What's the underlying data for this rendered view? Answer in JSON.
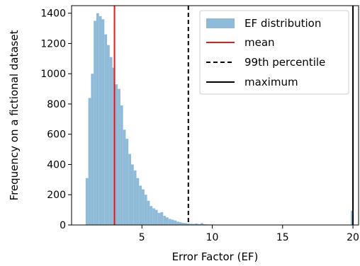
{
  "chart_data": {
    "type": "bar",
    "xlabel": "Error Factor (EF)",
    "ylabel": "Frequency on a fictional dataset",
    "xlim": [
      0,
      20.4
    ],
    "ylim": [
      0,
      1450
    ],
    "x_ticks": [
      5,
      10,
      15,
      20
    ],
    "x_tick_labels": [
      "5",
      "10",
      "15",
      "20"
    ],
    "y_ticks": [
      0,
      200,
      400,
      600,
      800,
      1000,
      1200,
      1400
    ],
    "y_tick_labels": [
      "0",
      "200",
      "400",
      "600",
      "800",
      "1000",
      "1200",
      "1400"
    ],
    "grid": false,
    "legend_position": "top-right",
    "bin_width": 0.19,
    "histogram": {
      "name": "EF distribution",
      "color": "#8fbbd9",
      "bins": [
        {
          "x": 1.0,
          "count": 310
        },
        {
          "x": 1.19,
          "count": 840
        },
        {
          "x": 1.38,
          "count": 1000
        },
        {
          "x": 1.57,
          "count": 1350
        },
        {
          "x": 1.76,
          "count": 1400
        },
        {
          "x": 1.95,
          "count": 1380
        },
        {
          "x": 2.14,
          "count": 1360
        },
        {
          "x": 2.33,
          "count": 1260
        },
        {
          "x": 2.52,
          "count": 1190
        },
        {
          "x": 2.71,
          "count": 1110
        },
        {
          "x": 2.9,
          "count": 1040
        },
        {
          "x": 3.09,
          "count": 930
        },
        {
          "x": 3.28,
          "count": 900
        },
        {
          "x": 3.47,
          "count": 790
        },
        {
          "x": 3.66,
          "count": 630
        },
        {
          "x": 3.85,
          "count": 570
        },
        {
          "x": 4.04,
          "count": 470
        },
        {
          "x": 4.23,
          "count": 400
        },
        {
          "x": 4.42,
          "count": 360
        },
        {
          "x": 4.61,
          "count": 310
        },
        {
          "x": 4.8,
          "count": 260
        },
        {
          "x": 4.99,
          "count": 235
        },
        {
          "x": 5.18,
          "count": 200
        },
        {
          "x": 5.37,
          "count": 160
        },
        {
          "x": 5.56,
          "count": 125
        },
        {
          "x": 5.75,
          "count": 110
        },
        {
          "x": 5.94,
          "count": 100
        },
        {
          "x": 6.13,
          "count": 80
        },
        {
          "x": 6.32,
          "count": 85
        },
        {
          "x": 6.51,
          "count": 60
        },
        {
          "x": 6.7,
          "count": 50
        },
        {
          "x": 6.89,
          "count": 40
        },
        {
          "x": 7.08,
          "count": 35
        },
        {
          "x": 7.27,
          "count": 30
        },
        {
          "x": 7.46,
          "count": 22
        },
        {
          "x": 7.65,
          "count": 18
        },
        {
          "x": 7.84,
          "count": 14
        },
        {
          "x": 8.03,
          "count": 12
        },
        {
          "x": 8.22,
          "count": 10
        },
        {
          "x": 8.41,
          "count": 8
        },
        {
          "x": 8.6,
          "count": 7
        },
        {
          "x": 8.79,
          "count": 10
        },
        {
          "x": 8.98,
          "count": 6
        },
        {
          "x": 9.17,
          "count": 12
        },
        {
          "x": 9.36,
          "count": 5
        },
        {
          "x": 9.55,
          "count": 4
        },
        {
          "x": 9.74,
          "count": 3
        },
        {
          "x": 9.93,
          "count": 3
        },
        {
          "x": 10.12,
          "count": 2
        },
        {
          "x": 10.31,
          "count": 2
        },
        {
          "x": 10.5,
          "count": 1
        },
        {
          "x": 19.85,
          "count": 95
        }
      ]
    },
    "lines": [
      {
        "name": "mean",
        "x": 3.05,
        "color": "#e31a1c",
        "style": "solid"
      },
      {
        "name": "99th percentile",
        "x": 8.3,
        "color": "#000000",
        "style": "dashed"
      },
      {
        "name": "maximum",
        "x": 20.0,
        "color": "#000000",
        "style": "solid"
      }
    ]
  }
}
